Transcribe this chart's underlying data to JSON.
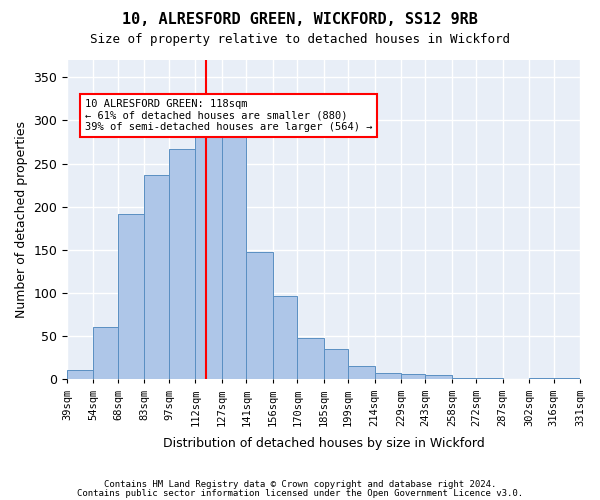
{
  "title": "10, ALRESFORD GREEN, WICKFORD, SS12 9RB",
  "subtitle": "Size of property relative to detached houses in Wickford",
  "xlabel": "Distribution of detached houses by size in Wickford",
  "ylabel": "Number of detached properties",
  "categories": [
    "39sqm",
    "54sqm",
    "68sqm",
    "83sqm",
    "97sqm",
    "112sqm",
    "127sqm",
    "141sqm",
    "156sqm",
    "170sqm",
    "185sqm",
    "199sqm",
    "214sqm",
    "229sqm",
    "243sqm",
    "258sqm",
    "272sqm",
    "287sqm",
    "302sqm",
    "316sqm",
    "331sqm"
  ],
  "bar_values": [
    11,
    61,
    192,
    237,
    267,
    285,
    285,
    148,
    96,
    48,
    35,
    16,
    7,
    6,
    5,
    2,
    1,
    0,
    2,
    1
  ],
  "bin_edges": [
    39,
    54,
    68,
    83,
    97,
    112,
    127,
    141,
    156,
    170,
    185,
    199,
    214,
    229,
    243,
    258,
    272,
    287,
    302,
    316,
    331
  ],
  "bar_color": "#aec6e8",
  "bar_edge_color": "#5a8fc2",
  "vline_x": 118,
  "vline_color": "red",
  "annotation_text": "10 ALRESFORD GREEN: 118sqm\n← 61% of detached houses are smaller (880)\n39% of semi-detached houses are larger (564) →",
  "annotation_box_color": "white",
  "annotation_box_edge_color": "red",
  "ylim": [
    0,
    370
  ],
  "yticks": [
    0,
    50,
    100,
    150,
    200,
    250,
    300,
    350
  ],
  "bg_color": "#e8eef7",
  "grid_color": "white",
  "footer_line1": "Contains HM Land Registry data © Crown copyright and database right 2024.",
  "footer_line2": "Contains public sector information licensed under the Open Government Licence v3.0."
}
